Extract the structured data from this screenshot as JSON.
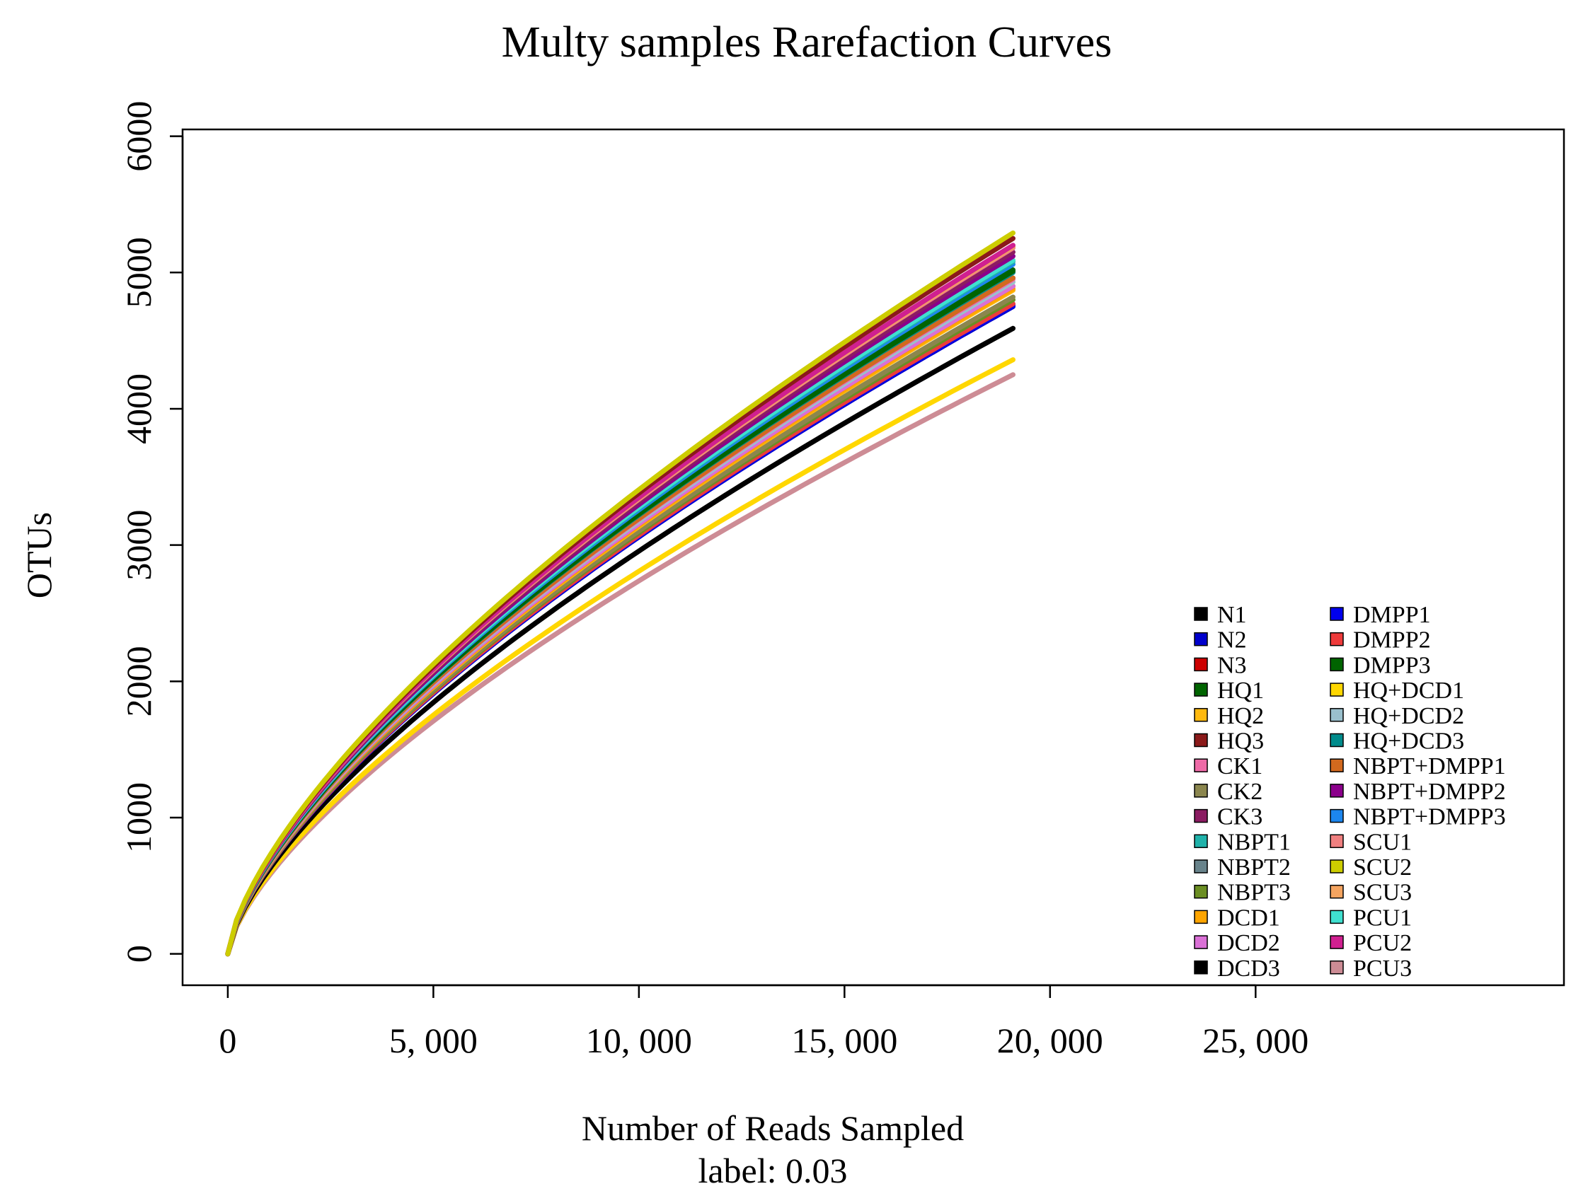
{
  "chart_data": {
    "type": "line",
    "title": "Multy samples Rarefaction Curves",
    "xlabel": "Number of Reads Sampled",
    "xlabel_sub": "label: 0.03",
    "ylabel": "OTUs",
    "xlim": [
      -1100,
      32500
    ],
    "ylim": [
      -230,
      6050
    ],
    "xticks": [
      0,
      5000,
      10000,
      15000,
      20000,
      25000
    ],
    "xtick_labels": [
      "0",
      "5, 000",
      "10, 000",
      "15, 000",
      "20, 000",
      "25, 000"
    ],
    "yticks": [
      0,
      1000,
      2000,
      3000,
      4000,
      5000,
      6000
    ],
    "ytick_labels": [
      "0",
      "1000",
      "2000",
      "3000",
      "4000",
      "5000",
      "6000"
    ],
    "max_reads": 19100,
    "legend_position": "bottom-right",
    "series": [
      {
        "name": "N1",
        "color": "#000000",
        "final_otus": 4590
      },
      {
        "name": "N2",
        "color": "#0000CD",
        "final_otus": 4750
      },
      {
        "name": "N3",
        "color": "#CC0000",
        "final_otus": 4900
      },
      {
        "name": "HQ1",
        "color": "#006400",
        "final_otus": 5010
      },
      {
        "name": "HQ2",
        "color": "#FFB90F",
        "final_otus": 4870
      },
      {
        "name": "HQ3",
        "color": "#8B1A1A",
        "final_otus": 5250
      },
      {
        "name": "CK1",
        "color": "#EE6AA7",
        "final_otus": 4950
      },
      {
        "name": "CK2",
        "color": "#8B864E",
        "final_otus": 4820
      },
      {
        "name": "CK3",
        "color": "#8B1C62",
        "final_otus": 5150
      },
      {
        "name": "NBPT1",
        "color": "#20B2AA",
        "final_otus": 5080
      },
      {
        "name": "NBPT2",
        "color": "#68838B",
        "final_otus": 4960
      },
      {
        "name": "NBPT3",
        "color": "#6B8E23",
        "final_otus": 4800
      },
      {
        "name": "DCD1",
        "color": "#FFA500",
        "final_otus": 4880
      },
      {
        "name": "DCD2",
        "color": "#DA70D6",
        "final_otus": 4900
      },
      {
        "name": "DCD3",
        "color": "#000000",
        "final_otus": 4590
      },
      {
        "name": "DMPP1",
        "color": "#0000EE",
        "final_otus": 4760
      },
      {
        "name": "DMPP2",
        "color": "#EE3B3B",
        "final_otus": 4770
      },
      {
        "name": "DMPP3",
        "color": "#006400",
        "final_otus": 5020
      },
      {
        "name": "HQ+DCD1",
        "color": "#FFD700",
        "final_otus": 4360
      },
      {
        "name": "HQ+DCD2",
        "color": "#9AC0CD",
        "final_otus": 4930
      },
      {
        "name": "HQ+DCD3",
        "color": "#008B8B",
        "final_otus": 5000
      },
      {
        "name": "NBPT+DMPP1",
        "color": "#D2691E",
        "final_otus": 4960
      },
      {
        "name": "NBPT+DMPP2",
        "color": "#8B008B",
        "final_otus": 5120
      },
      {
        "name": "NBPT+DMPP3",
        "color": "#1C86EE",
        "final_otus": 5060
      },
      {
        "name": "SCU1",
        "color": "#F08080",
        "final_otus": 5180
      },
      {
        "name": "SCU2",
        "color": "#CDCD00",
        "final_otus": 5290
      },
      {
        "name": "SCU3",
        "color": "#F4A460",
        "final_otus": 5190
      },
      {
        "name": "PCU1",
        "color": "#40E0D0",
        "final_otus": 5090
      },
      {
        "name": "PCU2",
        "color": "#D02090",
        "final_otus": 5200
      },
      {
        "name": "PCU3",
        "color": "#CD8C95",
        "final_otus": 4250
      }
    ]
  }
}
